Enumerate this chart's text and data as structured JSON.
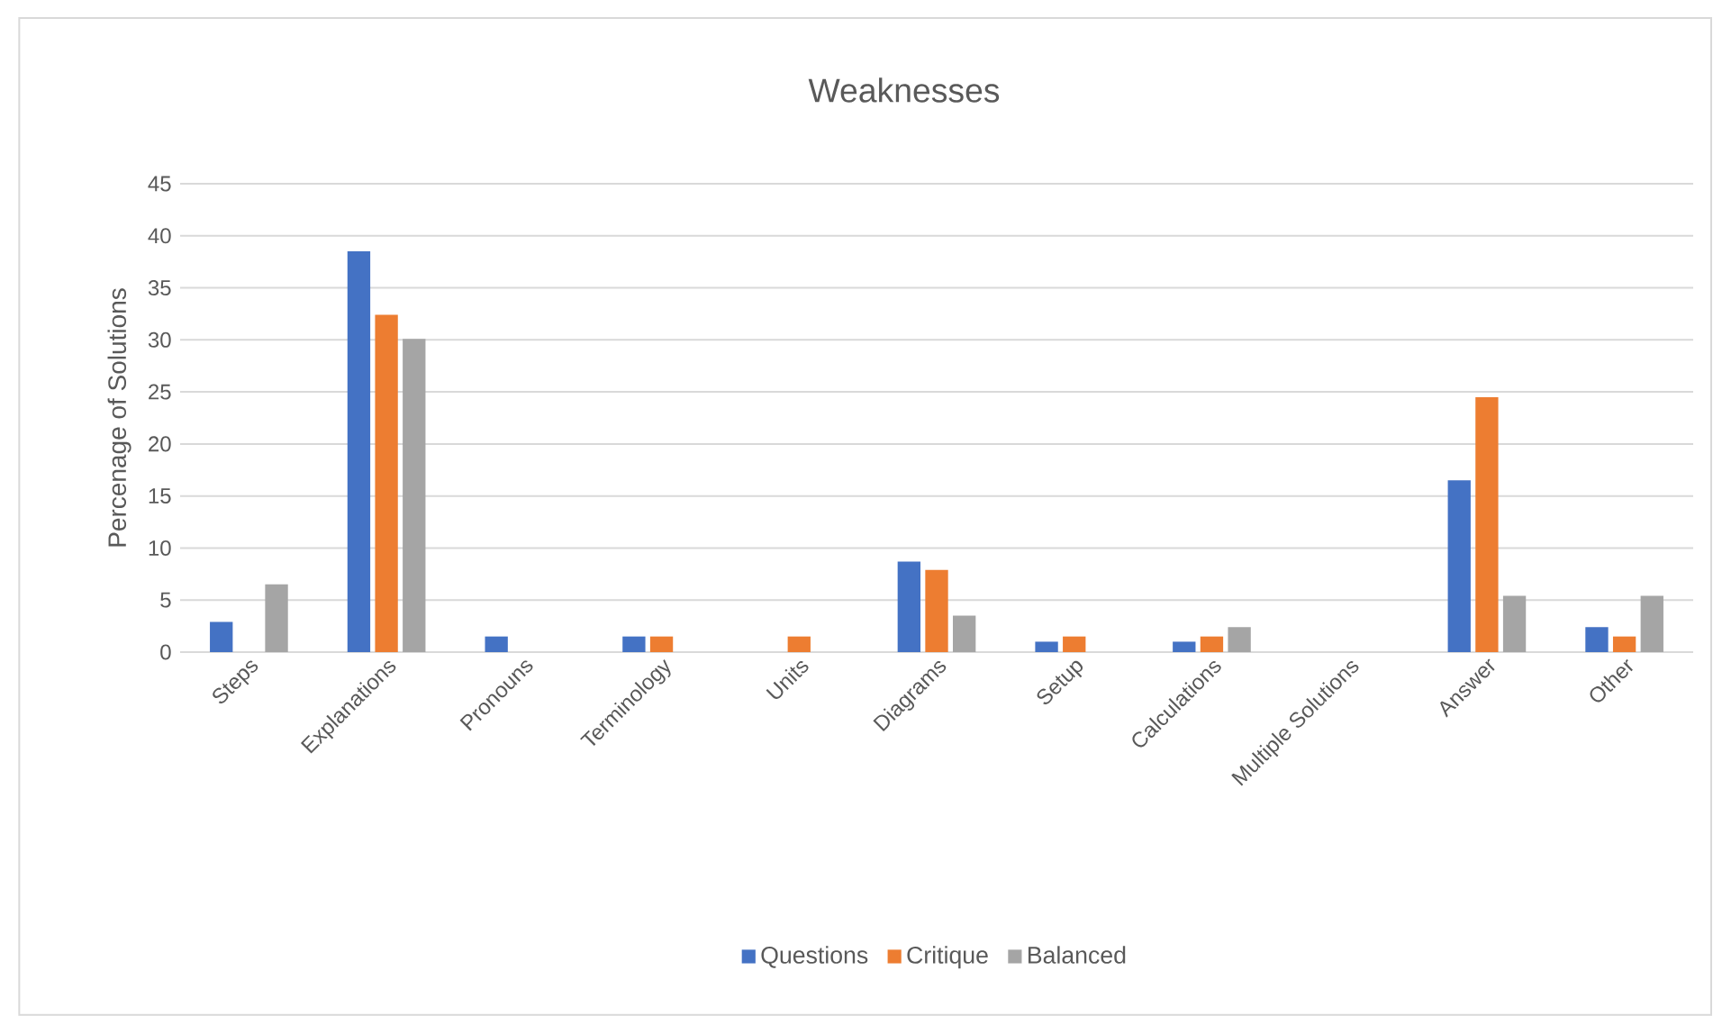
{
  "chart_data": {
    "type": "bar",
    "title": "Weaknesses",
    "ylabel": "Percenage of Solutions",
    "categories": [
      "Steps",
      "Explanations",
      "Pronouns",
      "Terminology",
      "Units",
      "Diagrams",
      "Setup",
      "Calculations",
      "Multiple Solutions",
      "Answer",
      "Other"
    ],
    "series": [
      {
        "name": "Questions",
        "color": "#4472c4",
        "values": [
          2.9,
          38.5,
          1.5,
          1.5,
          0,
          8.7,
          1.0,
          1.0,
          0,
          16.5,
          2.4
        ]
      },
      {
        "name": "Critique",
        "color": "#ed7d31",
        "values": [
          0,
          32.4,
          0,
          1.5,
          1.5,
          7.9,
          1.5,
          1.5,
          0,
          24.5,
          1.5
        ]
      },
      {
        "name": "Balanced",
        "color": "#a5a5a5",
        "values": [
          6.5,
          30.1,
          0,
          0,
          0,
          3.5,
          0,
          2.4,
          0,
          5.4,
          5.4
        ]
      }
    ],
    "ylim": [
      0,
      45
    ],
    "yticks": [
      0,
      5,
      10,
      15,
      20,
      25,
      30,
      35,
      40,
      45
    ],
    "grid": "y",
    "legend": "bottom"
  }
}
